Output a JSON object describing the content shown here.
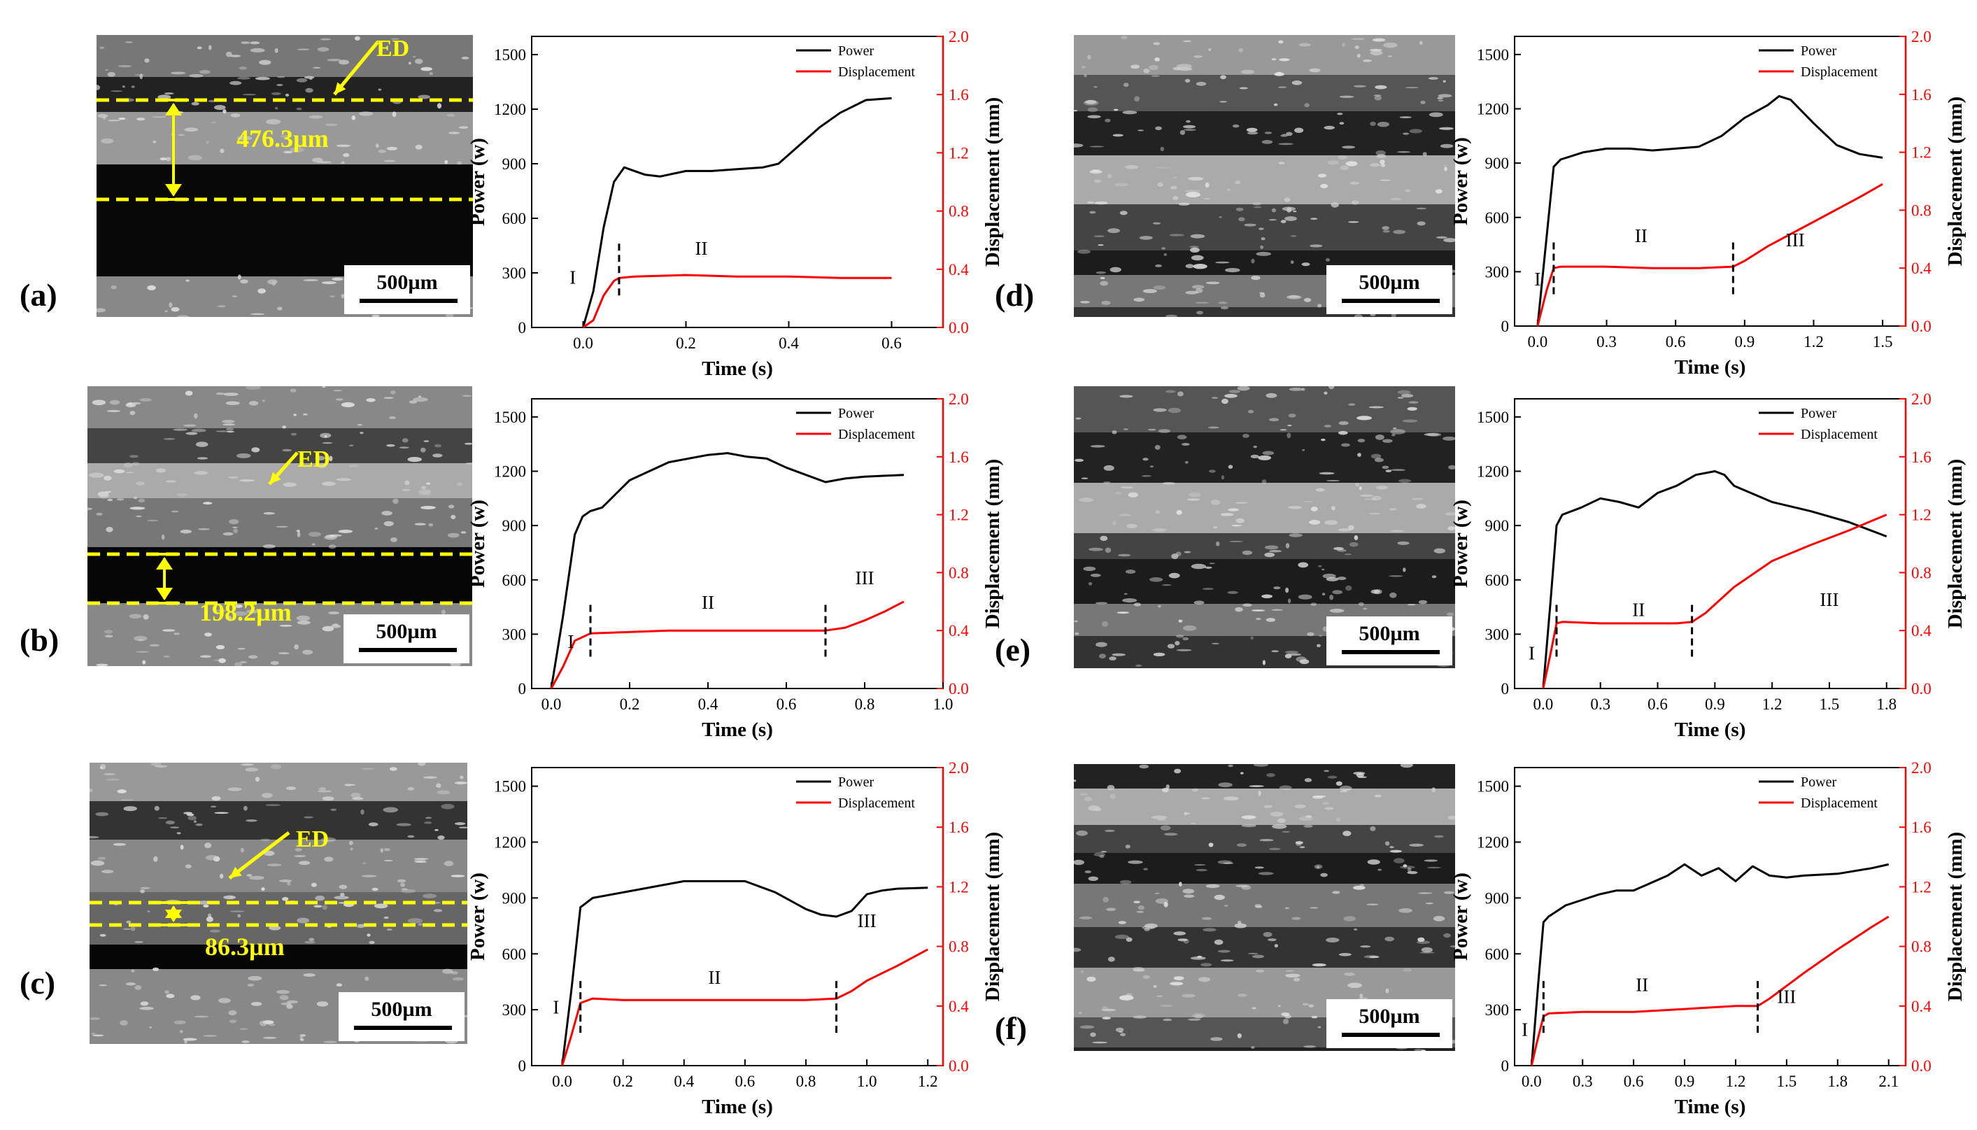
{
  "panel_labels": [
    "(a)",
    "(b)",
    "(c)",
    "(d)",
    "(e)",
    "(f)"
  ],
  "micrographs": [
    {
      "panel": "a",
      "ed_label": "ED",
      "thickness_label": "476.3µm",
      "scale_label": "500µm"
    },
    {
      "panel": "b",
      "ed_label": "ED",
      "thickness_label": "198.2µm",
      "scale_label": "500µm"
    },
    {
      "panel": "c",
      "ed_label": "ED",
      "thickness_label": "86.3µm",
      "scale_label": "500µm"
    },
    {
      "panel": "d",
      "scale_label": "500µm"
    },
    {
      "panel": "e",
      "scale_label": "500µm"
    },
    {
      "panel": "f",
      "scale_label": "500µm"
    }
  ],
  "colors": {
    "power": "#000000",
    "displacement": "#ff0000",
    "annotation": "#ffff00"
  },
  "chart_data": [
    {
      "panel": "a",
      "type": "line",
      "xlabel": "Time (s)",
      "ylabel": "Power (w)",
      "y2label": "Displacement (mm)",
      "xlim": [
        -0.1,
        0.7
      ],
      "xticks": [
        0.0,
        0.2,
        0.4,
        0.6
      ],
      "ylim": [
        0,
        1600
      ],
      "yticks": [
        0,
        300,
        600,
        900,
        1200,
        1500
      ],
      "y2lim": [
        0,
        2.0
      ],
      "y2ticks": [
        0.0,
        0.4,
        0.8,
        1.2,
        1.6,
        2.0
      ],
      "legend": [
        "Power",
        "Displacement"
      ],
      "legend_position": "top-right",
      "series": [
        {
          "name": "Power",
          "axis": "left",
          "x": [
            0.0,
            0.02,
            0.04,
            0.06,
            0.08,
            0.1,
            0.12,
            0.15,
            0.2,
            0.25,
            0.3,
            0.35,
            0.38,
            0.42,
            0.46,
            0.5,
            0.55,
            0.6
          ],
          "y": [
            0,
            200,
            550,
            800,
            880,
            860,
            840,
            830,
            860,
            860,
            870,
            880,
            900,
            1000,
            1100,
            1180,
            1250,
            1260
          ]
        },
        {
          "name": "Displacement",
          "axis": "right",
          "x": [
            0.0,
            0.02,
            0.04,
            0.06,
            0.07,
            0.1,
            0.2,
            0.3,
            0.4,
            0.5,
            0.6
          ],
          "y": [
            0.0,
            0.05,
            0.22,
            0.32,
            0.34,
            0.35,
            0.36,
            0.35,
            0.35,
            0.34,
            0.34
          ]
        }
      ],
      "stage_markers": [
        0.07
      ],
      "stage_labels": [
        {
          "text": "I",
          "x": -0.02,
          "y2": 0.3
        },
        {
          "text": "II",
          "x": 0.23,
          "y2": 0.5
        }
      ]
    },
    {
      "panel": "b",
      "type": "line",
      "xlabel": "Time (s)",
      "ylabel": "Power (w)",
      "y2label": "Displacement (mm)",
      "xlim": [
        -0.05,
        1.0
      ],
      "xticks": [
        0.0,
        0.2,
        0.4,
        0.6,
        0.8,
        1.0
      ],
      "ylim": [
        0,
        1600
      ],
      "yticks": [
        0,
        300,
        600,
        900,
        1200,
        1500
      ],
      "y2lim": [
        0,
        2.0
      ],
      "y2ticks": [
        0.0,
        0.4,
        0.8,
        1.2,
        1.6,
        2.0
      ],
      "legend": [
        "Power",
        "Displacement"
      ],
      "legend_position": "top-right",
      "series": [
        {
          "name": "Power",
          "axis": "left",
          "x": [
            0.0,
            0.03,
            0.06,
            0.08,
            0.1,
            0.13,
            0.2,
            0.3,
            0.4,
            0.45,
            0.5,
            0.55,
            0.6,
            0.65,
            0.7,
            0.75,
            0.8,
            0.9
          ],
          "y": [
            0,
            400,
            850,
            950,
            980,
            1000,
            1150,
            1250,
            1290,
            1300,
            1280,
            1270,
            1220,
            1180,
            1140,
            1160,
            1170,
            1180
          ]
        },
        {
          "name": "Displacement",
          "axis": "right",
          "x": [
            0.0,
            0.03,
            0.06,
            0.1,
            0.2,
            0.3,
            0.4,
            0.5,
            0.6,
            0.7,
            0.75,
            0.8,
            0.85,
            0.9
          ],
          "y": [
            0.0,
            0.15,
            0.33,
            0.38,
            0.39,
            0.4,
            0.4,
            0.4,
            0.4,
            0.4,
            0.42,
            0.47,
            0.53,
            0.6
          ]
        }
      ],
      "stage_markers": [
        0.1,
        0.7
      ],
      "stage_labels": [
        {
          "text": "I",
          "x": 0.05,
          "y2": 0.28
        },
        {
          "text": "II",
          "x": 0.4,
          "y2": 0.55
        },
        {
          "text": "III",
          "x": 0.8,
          "y2": 0.72
        }
      ]
    },
    {
      "panel": "c",
      "type": "line",
      "xlabel": "Time (s)",
      "ylabel": "Power (w)",
      "y2label": "Displacement (mm)",
      "xlim": [
        -0.1,
        1.25
      ],
      "xticks": [
        0.0,
        0.2,
        0.4,
        0.6,
        0.8,
        1.0,
        1.2
      ],
      "ylim": [
        0,
        1600
      ],
      "yticks": [
        0,
        300,
        600,
        900,
        1200,
        1500
      ],
      "y2lim": [
        0,
        2.0
      ],
      "y2ticks": [
        0.0,
        0.4,
        0.8,
        1.2,
        1.6,
        2.0
      ],
      "legend": [
        "Power",
        "Displacement"
      ],
      "legend_position": "top-right",
      "series": [
        {
          "name": "Power",
          "axis": "left",
          "x": [
            0.0,
            0.03,
            0.06,
            0.1,
            0.2,
            0.3,
            0.4,
            0.5,
            0.6,
            0.7,
            0.8,
            0.85,
            0.9,
            0.95,
            1.0,
            1.05,
            1.1,
            1.2
          ],
          "y": [
            0,
            400,
            850,
            900,
            930,
            960,
            990,
            990,
            990,
            930,
            840,
            810,
            800,
            830,
            920,
            940,
            950,
            955
          ]
        },
        {
          "name": "Displacement",
          "axis": "right",
          "x": [
            0.0,
            0.03,
            0.06,
            0.1,
            0.2,
            0.4,
            0.6,
            0.8,
            0.9,
            0.95,
            1.0,
            1.1,
            1.2
          ],
          "y": [
            0.0,
            0.2,
            0.42,
            0.45,
            0.44,
            0.44,
            0.44,
            0.44,
            0.45,
            0.5,
            0.57,
            0.67,
            0.78
          ]
        }
      ],
      "stage_markers": [
        0.06,
        0.9
      ],
      "stage_labels": [
        {
          "text": "I",
          "x": -0.02,
          "y2": 0.35
        },
        {
          "text": "II",
          "x": 0.5,
          "y2": 0.55
        },
        {
          "text": "III",
          "x": 1.0,
          "y2": 0.93
        }
      ]
    },
    {
      "panel": "d",
      "type": "line",
      "xlabel": "Time (s)",
      "ylabel": "Power (w)",
      "y2label": "Displacement (mm)",
      "xlim": [
        -0.1,
        1.6
      ],
      "xticks": [
        0.0,
        0.3,
        0.6,
        0.9,
        1.2,
        1.5
      ],
      "ylim": [
        0,
        1600
      ],
      "yticks": [
        0,
        300,
        600,
        900,
        1200,
        1500
      ],
      "y2lim": [
        0,
        2.0
      ],
      "y2ticks": [
        0.0,
        0.4,
        0.8,
        1.2,
        1.6,
        2.0
      ],
      "legend": [
        "Power",
        "Displacement"
      ],
      "legend_position": "top-right",
      "series": [
        {
          "name": "Power",
          "axis": "left",
          "x": [
            0.0,
            0.04,
            0.07,
            0.1,
            0.2,
            0.3,
            0.4,
            0.5,
            0.6,
            0.7,
            0.8,
            0.9,
            1.0,
            1.05,
            1.1,
            1.2,
            1.3,
            1.4,
            1.5
          ],
          "y": [
            0,
            500,
            880,
            920,
            960,
            980,
            980,
            970,
            980,
            990,
            1050,
            1150,
            1220,
            1270,
            1250,
            1120,
            1000,
            950,
            930
          ]
        },
        {
          "name": "Displacement",
          "axis": "right",
          "x": [
            0.0,
            0.04,
            0.07,
            0.1,
            0.3,
            0.5,
            0.7,
            0.85,
            0.9,
            1.0,
            1.2,
            1.4,
            1.5
          ],
          "y": [
            0.0,
            0.25,
            0.4,
            0.41,
            0.41,
            0.4,
            0.4,
            0.41,
            0.45,
            0.55,
            0.72,
            0.89,
            0.98
          ]
        }
      ],
      "stage_markers": [
        0.07,
        0.85
      ],
      "stage_labels": [
        {
          "text": "I",
          "x": 0.0,
          "y2": 0.28
        },
        {
          "text": "II",
          "x": 0.45,
          "y2": 0.58
        },
        {
          "text": "III",
          "x": 1.12,
          "y2": 0.55
        }
      ]
    },
    {
      "panel": "e",
      "type": "line",
      "xlabel": "Time (s)",
      "ylabel": "Power (w)",
      "y2label": "Displacement (mm)",
      "xlim": [
        -0.15,
        1.9
      ],
      "xticks": [
        0.0,
        0.3,
        0.6,
        0.9,
        1.2,
        1.5,
        1.8
      ],
      "ylim": [
        0,
        1600
      ],
      "yticks": [
        0,
        300,
        600,
        900,
        1200,
        1500
      ],
      "y2lim": [
        0,
        2.0
      ],
      "y2ticks": [
        0.0,
        0.4,
        0.8,
        1.2,
        1.6,
        2.0
      ],
      "legend": [
        "Power",
        "Displacement"
      ],
      "legend_position": "top-right",
      "series": [
        {
          "name": "Power",
          "axis": "left",
          "x": [
            0.0,
            0.04,
            0.07,
            0.1,
            0.2,
            0.3,
            0.4,
            0.5,
            0.6,
            0.7,
            0.8,
            0.9,
            0.95,
            1.0,
            1.2,
            1.4,
            1.6,
            1.8
          ],
          "y": [
            0,
            500,
            900,
            960,
            1000,
            1050,
            1030,
            1000,
            1080,
            1120,
            1180,
            1200,
            1180,
            1120,
            1030,
            980,
            920,
            840
          ]
        },
        {
          "name": "Displacement",
          "axis": "right",
          "x": [
            0.0,
            0.04,
            0.07,
            0.1,
            0.3,
            0.5,
            0.7,
            0.78,
            0.85,
            1.0,
            1.2,
            1.4,
            1.6,
            1.8
          ],
          "y": [
            0.0,
            0.25,
            0.45,
            0.46,
            0.45,
            0.45,
            0.45,
            0.46,
            0.52,
            0.7,
            0.88,
            0.99,
            1.09,
            1.2
          ]
        }
      ],
      "stage_markers": [
        0.07,
        0.78
      ],
      "stage_labels": [
        {
          "text": "I",
          "x": -0.06,
          "y2": 0.2
        },
        {
          "text": "II",
          "x": 0.5,
          "y2": 0.5
        },
        {
          "text": "III",
          "x": 1.5,
          "y2": 0.57
        }
      ]
    },
    {
      "panel": "f",
      "type": "line",
      "xlabel": "Time (s)",
      "ylabel": "Power (w)",
      "y2label": "Displacement (mm)",
      "xlim": [
        -0.1,
        2.2
      ],
      "xticks": [
        0.0,
        0.3,
        0.6,
        0.9,
        1.2,
        1.5,
        1.8,
        2.1
      ],
      "ylim": [
        0,
        1600
      ],
      "yticks": [
        0,
        300,
        600,
        900,
        1200,
        1500
      ],
      "y2lim": [
        0,
        2.0
      ],
      "y2ticks": [
        0.0,
        0.4,
        0.8,
        1.2,
        1.6,
        2.0
      ],
      "legend": [
        "Power",
        "Displacement"
      ],
      "legend_position": "top-right",
      "series": [
        {
          "name": "Power",
          "axis": "left",
          "x": [
            0.0,
            0.04,
            0.07,
            0.1,
            0.2,
            0.3,
            0.4,
            0.5,
            0.6,
            0.7,
            0.8,
            0.9,
            1.0,
            1.1,
            1.2,
            1.3,
            1.4,
            1.5,
            1.6,
            1.8,
            2.0,
            2.1
          ],
          "y": [
            0,
            450,
            770,
            800,
            860,
            890,
            920,
            940,
            940,
            980,
            1020,
            1080,
            1020,
            1060,
            990,
            1070,
            1020,
            1010,
            1020,
            1030,
            1060,
            1080
          ]
        },
        {
          "name": "Displacement",
          "axis": "right",
          "x": [
            0.0,
            0.03,
            0.07,
            0.1,
            0.3,
            0.6,
            0.9,
            1.2,
            1.33,
            1.4,
            1.6,
            1.8,
            2.0,
            2.1
          ],
          "y": [
            0.0,
            0.15,
            0.33,
            0.35,
            0.36,
            0.36,
            0.38,
            0.4,
            0.4,
            0.45,
            0.62,
            0.78,
            0.93,
            1.0
          ]
        }
      ],
      "stage_markers": [
        0.07,
        1.33
      ],
      "stage_labels": [
        {
          "text": "I",
          "x": -0.04,
          "y2": 0.2
        },
        {
          "text": "II",
          "x": 0.65,
          "y2": 0.5
        },
        {
          "text": "III",
          "x": 1.5,
          "y2": 0.42
        }
      ]
    }
  ]
}
